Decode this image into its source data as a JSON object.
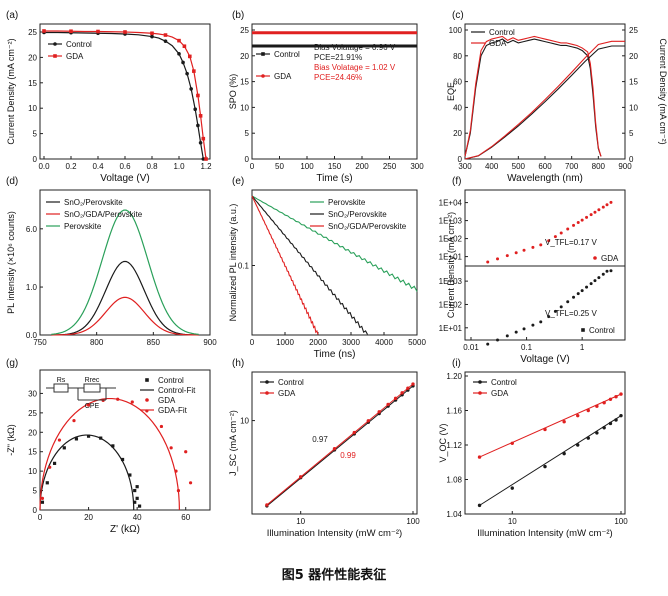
{
  "caption": "图5 器件性能表征",
  "colors": {
    "black": "#1a1a1a",
    "red": "#e02020",
    "green": "#2aa05a",
    "frame": "#222222"
  },
  "chart_data": [
    {
      "id": "a",
      "label": "(a)",
      "type": "line",
      "xlabel": "Voltage (V)",
      "ylabel": "Current Density (mA cm⁻²)",
      "xlim": [
        0,
        1.2
      ],
      "ylim": [
        0,
        25
      ],
      "xticks": [
        0.0,
        0.2,
        0.4,
        0.6,
        0.8,
        1.0,
        1.2
      ],
      "yticks": [
        0,
        5,
        10,
        15,
        20,
        25
      ],
      "legend": [
        "Control",
        "GDA"
      ],
      "legend_position": "top-left",
      "series": [
        {
          "name": "Control",
          "color": "black",
          "marker": "circle",
          "x": [
            0,
            0.1,
            0.2,
            0.3,
            0.4,
            0.5,
            0.6,
            0.7,
            0.8,
            0.85,
            0.9,
            0.95,
            1.0,
            1.03,
            1.06,
            1.09,
            1.12,
            1.14,
            1.16,
            1.18
          ],
          "y": [
            24.9,
            24.9,
            24.85,
            24.8,
            24.75,
            24.7,
            24.6,
            24.45,
            24.1,
            23.8,
            23.2,
            22.3,
            20.7,
            19.0,
            16.8,
            13.8,
            9.8,
            6.6,
            3.2,
            0
          ]
        },
        {
          "name": "GDA",
          "color": "red",
          "marker": "square",
          "x": [
            0,
            0.1,
            0.2,
            0.3,
            0.4,
            0.5,
            0.6,
            0.7,
            0.8,
            0.85,
            0.9,
            0.95,
            1.0,
            1.04,
            1.08,
            1.11,
            1.14,
            1.16,
            1.18,
            1.2
          ],
          "y": [
            25.2,
            25.2,
            25.15,
            25.1,
            25.1,
            25.05,
            25.0,
            24.9,
            24.75,
            24.6,
            24.4,
            24.0,
            23.3,
            22.2,
            20.2,
            17.3,
            12.5,
            8.5,
            4.0,
            0
          ]
        }
      ]
    },
    {
      "id": "b",
      "label": "(b)",
      "type": "line",
      "xlabel": "Time (s)",
      "ylabel": "SPO (%)",
      "xlim": [
        0,
        300
      ],
      "ylim": [
        0,
        25
      ],
      "xticks": [
        0,
        50,
        100,
        150,
        200,
        250,
        300
      ],
      "yticks": [
        0,
        5,
        10,
        15,
        20,
        25
      ],
      "legend": [
        "Control",
        "GDA"
      ],
      "legend_position": "left",
      "series": [
        {
          "name": "Control",
          "color": "black",
          "marker": "square",
          "x": [
            0,
            300
          ],
          "y": [
            21.91,
            21.91
          ]
        },
        {
          "name": "GDA",
          "color": "red",
          "marker": "circle",
          "x": [
            0,
            300
          ],
          "y": [
            24.46,
            24.46
          ]
        }
      ],
      "annotations": [
        {
          "text": "Bias Volatage = 0.96 V",
          "color": "black"
        },
        {
          "text": "PCE=21.91%",
          "color": "black"
        },
        {
          "text": "Bias Volatage = 1.02 V",
          "color": "red"
        },
        {
          "text": "PCE=24.46%",
          "color": "red"
        }
      ]
    },
    {
      "id": "c",
      "label": "(c)",
      "type": "line",
      "xlabel": "Wavelength (nm)",
      "ylabel": "EQE",
      "ylabel_right": "Current Density (mA cm⁻²)",
      "xlim": [
        300,
        900
      ],
      "ylim": [
        0,
        100
      ],
      "ylim_right": [
        0,
        25
      ],
      "xticks": [
        300,
        400,
        500,
        600,
        700,
        800,
        900
      ],
      "yticks": [
        0,
        20,
        40,
        60,
        80,
        100
      ],
      "yticks_right": [
        0,
        5,
        10,
        15,
        20,
        25
      ],
      "legend": [
        "Control",
        "GDA"
      ],
      "legend_position": "top-left",
      "series": [
        {
          "name": "Control EQE",
          "color": "black",
          "x": [
            300,
            320,
            340,
            360,
            380,
            400,
            420,
            440,
            460,
            480,
            500,
            520,
            540,
            560,
            580,
            600,
            620,
            640,
            660,
            680,
            700,
            720,
            740,
            760,
            770,
            780,
            790,
            800,
            810
          ],
          "y": [
            2,
            20,
            55,
            80,
            88,
            90,
            91,
            93,
            90,
            92,
            90,
            91,
            92,
            93,
            92,
            91,
            90,
            89,
            88,
            88,
            87,
            86,
            84,
            80,
            70,
            50,
            25,
            8,
            2
          ]
        },
        {
          "name": "GDA EQE",
          "color": "red",
          "x": [
            300,
            320,
            340,
            360,
            380,
            400,
            420,
            440,
            460,
            480,
            500,
            520,
            540,
            560,
            580,
            600,
            620,
            640,
            660,
            680,
            700,
            720,
            740,
            760,
            770,
            780,
            790,
            800,
            810
          ],
          "y": [
            2,
            22,
            58,
            84,
            91,
            93,
            94,
            95,
            92,
            94,
            92,
            93,
            94,
            95,
            94,
            93,
            92,
            91,
            90,
            90,
            89,
            88,
            86,
            83,
            74,
            55,
            28,
            9,
            2
          ]
        },
        {
          "name": "Control Jsc",
          "color": "black",
          "axis": "right",
          "x": [
            300,
            350,
            400,
            450,
            500,
            550,
            600,
            650,
            700,
            750,
            800,
            850,
            900
          ],
          "y": [
            0,
            0.6,
            2.3,
            4.3,
            6.4,
            8.7,
            11.1,
            13.6,
            16.2,
            18.9,
            21.3,
            21.9,
            21.9
          ]
        },
        {
          "name": "GDA Jsc",
          "color": "red",
          "axis": "right",
          "x": [
            300,
            350,
            400,
            450,
            500,
            550,
            600,
            650,
            700,
            750,
            800,
            850,
            900
          ],
          "y": [
            0,
            0.65,
            2.4,
            4.5,
            6.7,
            9.0,
            11.5,
            14.1,
            16.8,
            19.6,
            22.2,
            22.8,
            22.8
          ]
        }
      ]
    },
    {
      "id": "d",
      "label": "(d)",
      "type": "line",
      "xlabel": "",
      "ylabel": "PL intensity (×10⁶ counts)",
      "xlim": [
        750,
        900
      ],
      "ylim": [
        0,
        8
      ],
      "xticks": [
        750,
        800,
        850,
        900
      ],
      "yticks_labels": [
        "0.0",
        "1.0",
        "6.0"
      ],
      "legend": [
        "SnO₂/Perovskite",
        "SnO₂/GDA/Perovskite",
        "Perovskite"
      ],
      "legend_position": "top-left",
      "series": [
        {
          "name": "SnO₂/Perovskite",
          "color": "black",
          "peak_x": 825,
          "peak_y": 4.3
        },
        {
          "name": "SnO₂/GDA/Perovskite",
          "color": "red",
          "peak_x": 825,
          "peak_y": 2.2
        },
        {
          "name": "Perovskite",
          "color": "green",
          "peak_x": 825,
          "peak_y": 7.3
        }
      ]
    },
    {
      "id": "e",
      "label": "(e)",
      "type": "line",
      "xlabel": "Time (ns)",
      "ylabel": "Normalized PL intensity (a.u.)",
      "xlim": [
        0,
        5000
      ],
      "ylim_log": [
        0.01,
        1
      ],
      "xticks": [
        0,
        1000,
        2000,
        3000,
        4000,
        5000
      ],
      "yticks_labels": [
        "0.1"
      ],
      "legend": [
        "Perovskite",
        "SnO₂/Perovskite",
        "SnO₂/GDA/Perovskite"
      ],
      "legend_position": "top-right",
      "series": [
        {
          "name": "Perovskite",
          "color": "green",
          "x": [
            0,
            5000
          ],
          "y": [
            1,
            0.045
          ]
        },
        {
          "name": "SnO₂/Perovskite",
          "color": "black",
          "x": [
            0,
            3500
          ],
          "y": [
            1,
            0.01
          ]
        },
        {
          "name": "SnO₂/GDA/Perovskite",
          "color": "red",
          "x": [
            0,
            2000
          ],
          "y": [
            1,
            0.01
          ]
        }
      ]
    },
    {
      "id": "f",
      "label": "(f)",
      "type": "scatter",
      "xlabel": "Voltage (V)",
      "ylabel": "Current Density (mA cm⁻²)",
      "xlim_log": [
        0.01,
        5
      ],
      "xticks_labels": [
        "0.01",
        "0.1",
        "1"
      ],
      "top": {
        "name": "GDA",
        "color": "red",
        "annotation": "V_TFL=0.17 V",
        "yticks_labels": [
          "1E+01",
          "1E+02",
          "1E+03",
          "1E+04"
        ]
      },
      "bottom": {
        "name": "Control",
        "color": "black",
        "annotation": "V_TFL=0.25 V",
        "yticks_labels": [
          "1E+01",
          "1E+02",
          "1E+03"
        ]
      }
    },
    {
      "id": "g",
      "label": "(g)",
      "type": "scatter",
      "xlabel": "Z' (kΩ)",
      "ylabel": "-Z\" (kΩ)",
      "xlim": [
        0,
        70
      ],
      "ylim": [
        0,
        35
      ],
      "xticks": [
        0,
        20,
        40,
        60
      ],
      "yticks": [
        0,
        5,
        10,
        15,
        20,
        25,
        30
      ],
      "legend": [
        "Control",
        "Control-Fit",
        "GDA",
        "GDA-Fit"
      ],
      "legend_position": "top-right",
      "circuit_labels": [
        "Rs",
        "Rrec",
        "CPE"
      ],
      "series": [
        {
          "name": "Control",
          "color": "black",
          "marker": "square",
          "x": [
            1,
            3,
            6,
            10,
            15,
            20,
            25,
            30,
            34,
            37,
            39,
            40,
            41,
            40,
            39
          ],
          "y": [
            2,
            7,
            12,
            16,
            18.3,
            19,
            18.5,
            16.5,
            13,
            9,
            5,
            3,
            1,
            6,
            2
          ]
        },
        {
          "name": "Control-Fit",
          "color": "black",
          "type": "fit",
          "center": 19.3,
          "radius": 19.3,
          "ymax": 19.3
        },
        {
          "name": "GDA",
          "color": "red",
          "marker": "circle",
          "x": [
            1,
            4,
            8,
            14,
            20,
            26,
            32,
            38,
            44,
            50,
            54,
            56,
            57,
            60,
            62
          ],
          "y": [
            3,
            11,
            18,
            23,
            27,
            28.2,
            28.5,
            27.8,
            25.5,
            21.5,
            16,
            10,
            5,
            15,
            7
          ]
        },
        {
          "name": "GDA-Fit",
          "color": "red",
          "type": "fit",
          "center": 28.7,
          "radius": 28.7,
          "ymax": 28.7
        }
      ]
    },
    {
      "id": "h",
      "label": "(h)",
      "type": "scatter",
      "xlabel": "Illumination Intensity (mW cm⁻²)",
      "ylabel": "J_SC (mA cm⁻²)",
      "xlim_log": [
        4,
        100
      ],
      "ylim_log": [
        1,
        30
      ],
      "xticks_labels": [
        "10",
        "100"
      ],
      "yticks_labels": [
        "10"
      ],
      "legend": [
        "Control",
        "GDA"
      ],
      "legend_position": "top-left",
      "slope_labels": [
        {
          "text": "0.97",
          "color": "black"
        },
        {
          "text": "0.99",
          "color": "red"
        }
      ],
      "series": [
        {
          "name": "Control",
          "color": "black",
          "x": [
            5,
            10,
            20,
            30,
            40,
            50,
            60,
            70,
            80,
            90,
            100
          ],
          "y": [
            1.22,
            2.45,
            4.85,
            7.2,
            9.6,
            11.9,
            14.3,
            16.6,
            18.9,
            21.2,
            23.5
          ]
        },
        {
          "name": "GDA",
          "color": "red",
          "x": [
            5,
            10,
            20,
            30,
            40,
            50,
            60,
            70,
            80,
            90,
            100
          ],
          "y": [
            1.25,
            2.5,
            5.0,
            7.45,
            9.95,
            12.4,
            14.9,
            17.3,
            19.8,
            22.2,
            24.6
          ]
        }
      ]
    },
    {
      "id": "i",
      "label": "(i)",
      "type": "scatter",
      "xlabel": "Illumination Intensity (mW cm⁻²)",
      "ylabel": "V_OC (V)",
      "xlim_log": [
        4,
        100
      ],
      "ylim": [
        1.04,
        1.2
      ],
      "xticks_labels": [
        "10",
        "100"
      ],
      "yticks": [
        1.04,
        1.08,
        1.12,
        1.16,
        1.2
      ],
      "legend": [
        "Control",
        "GDA"
      ],
      "legend_position": "top-left",
      "series": [
        {
          "name": "Control",
          "color": "black",
          "x": [
            5,
            10,
            20,
            30,
            40,
            50,
            60,
            70,
            80,
            90,
            100
          ],
          "y": [
            1.05,
            1.07,
            1.095,
            1.11,
            1.12,
            1.128,
            1.134,
            1.14,
            1.145,
            1.149,
            1.154
          ]
        },
        {
          "name": "GDA",
          "color": "red",
          "x": [
            5,
            10,
            20,
            30,
            40,
            50,
            60,
            70,
            80,
            90,
            100
          ],
          "y": [
            1.106,
            1.122,
            1.138,
            1.147,
            1.154,
            1.16,
            1.165,
            1.169,
            1.173,
            1.176,
            1.179
          ]
        }
      ]
    }
  ]
}
